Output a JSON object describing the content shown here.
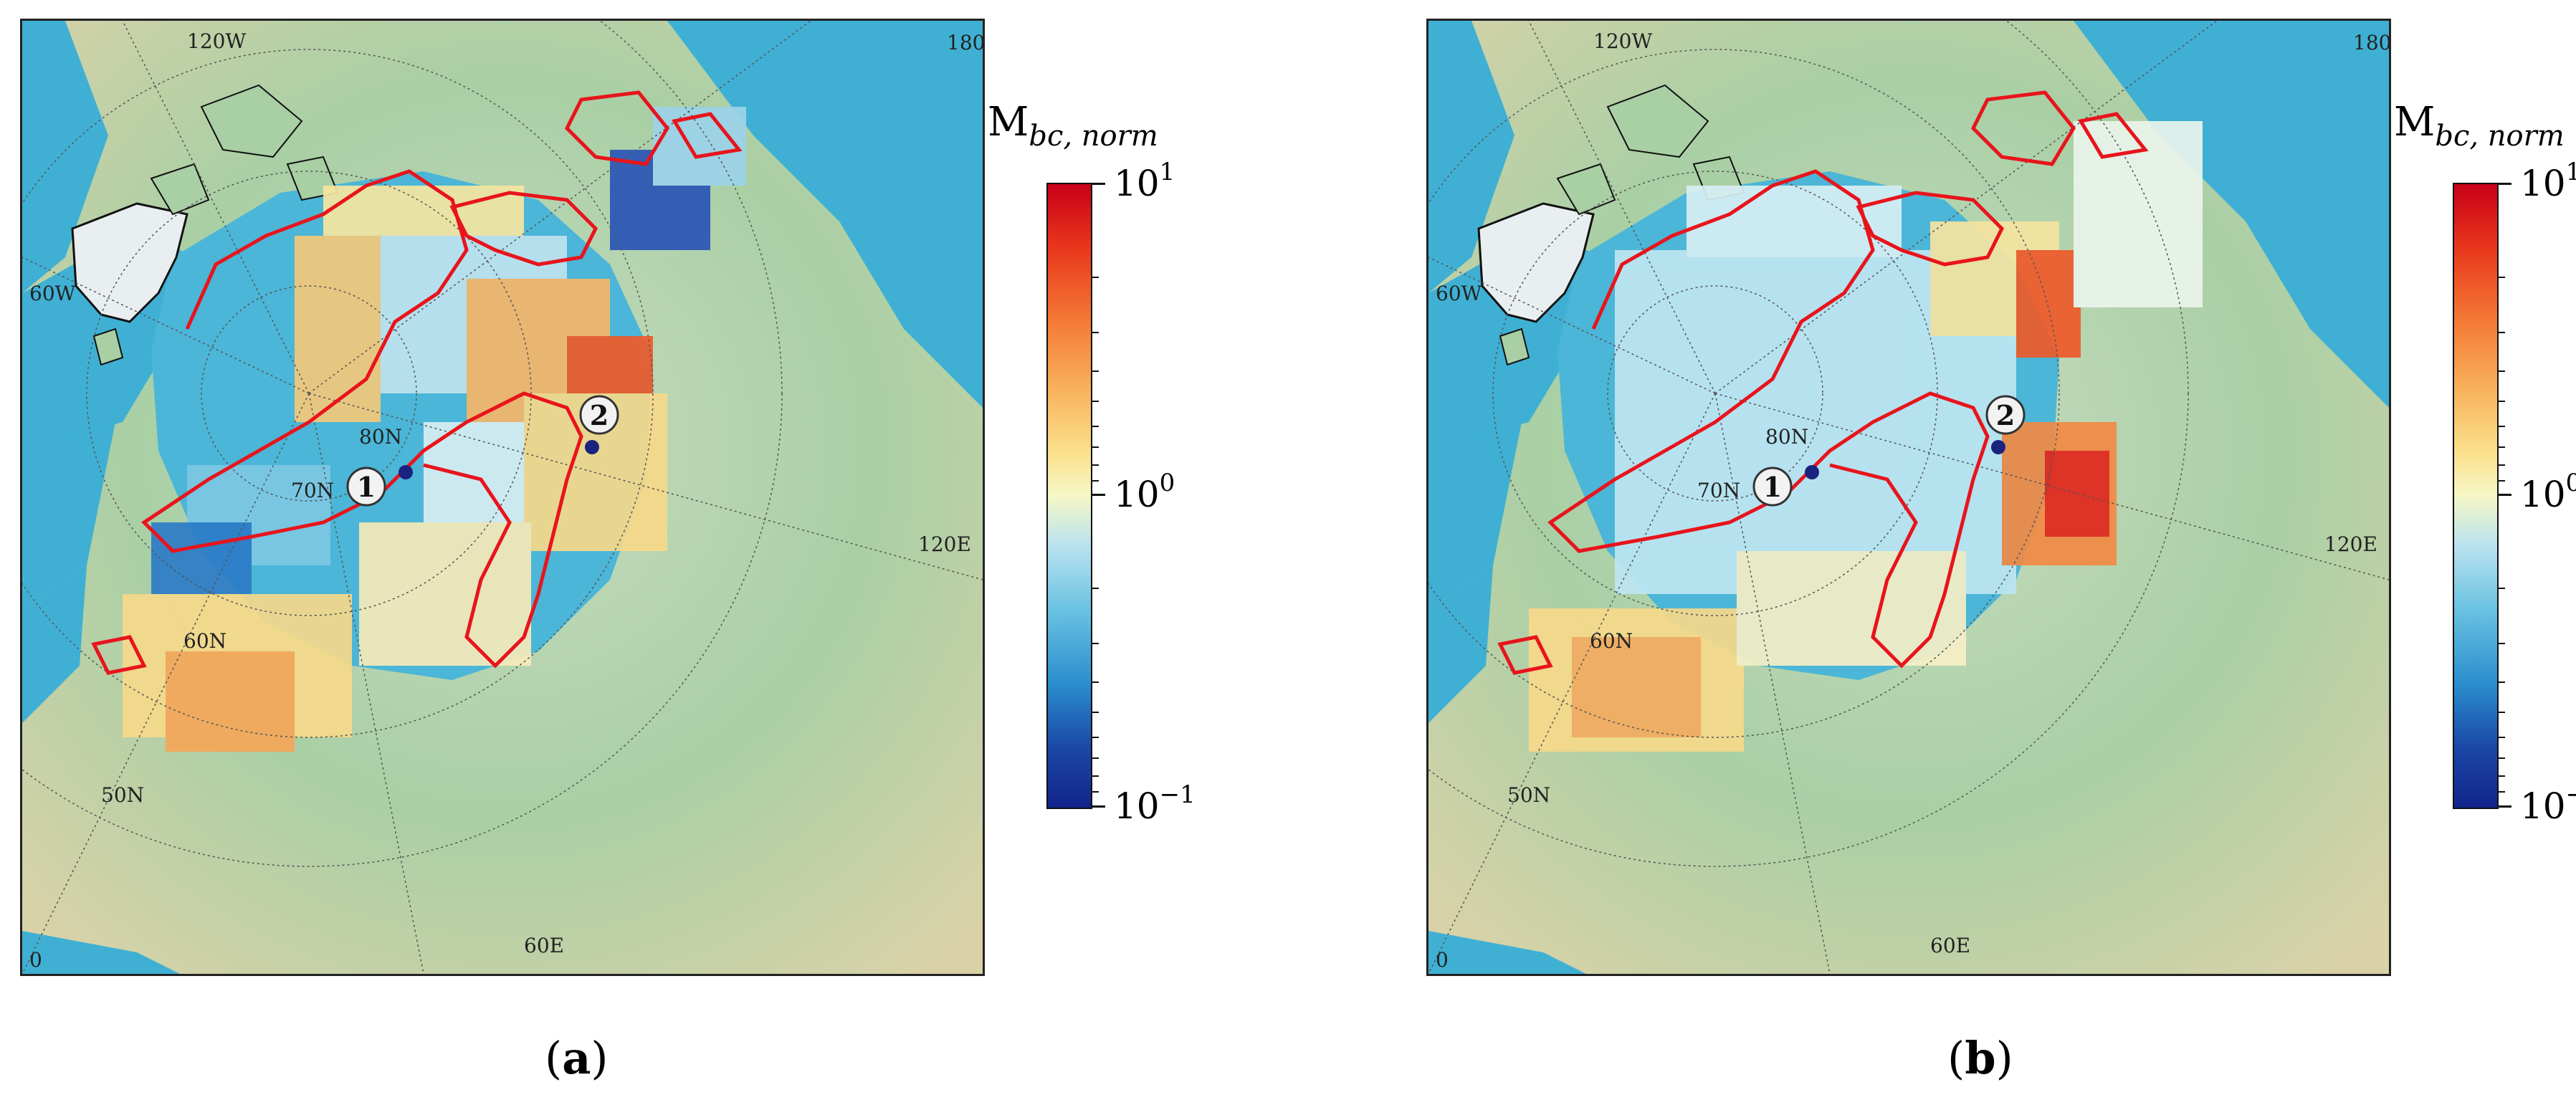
{
  "colorbar": {
    "title_main": "M",
    "title_sub": "bc, norm",
    "ticks": [
      {
        "base": "10",
        "exp": "1"
      },
      {
        "base": "10",
        "exp": "0"
      },
      {
        "base": "10",
        "exp": "−1"
      }
    ],
    "scale": "log",
    "range": [
      0.1,
      10
    ]
  },
  "map_labels": {
    "lon_120w": "120W",
    "lon_180": "180",
    "lon_60w": "60W",
    "lon_120e": "120E",
    "lon_60e": "60E",
    "lon_0": "0",
    "lat_80n": "80N",
    "lat_70n": "70N",
    "lat_60n": "60N",
    "lat_50n": "50N"
  },
  "sites": {
    "site1": "1",
    "site2": "2"
  },
  "panels": [
    {
      "label_open": "(",
      "label_letter": "a",
      "label_close": ")"
    },
    {
      "label_open": "(",
      "label_letter": "b",
      "label_close": ")"
    }
  ],
  "colors": {
    "contour": "#e8141c",
    "ocean": "#3fb0d4",
    "land": "#9cc7a0",
    "coastline": "#111111"
  }
}
